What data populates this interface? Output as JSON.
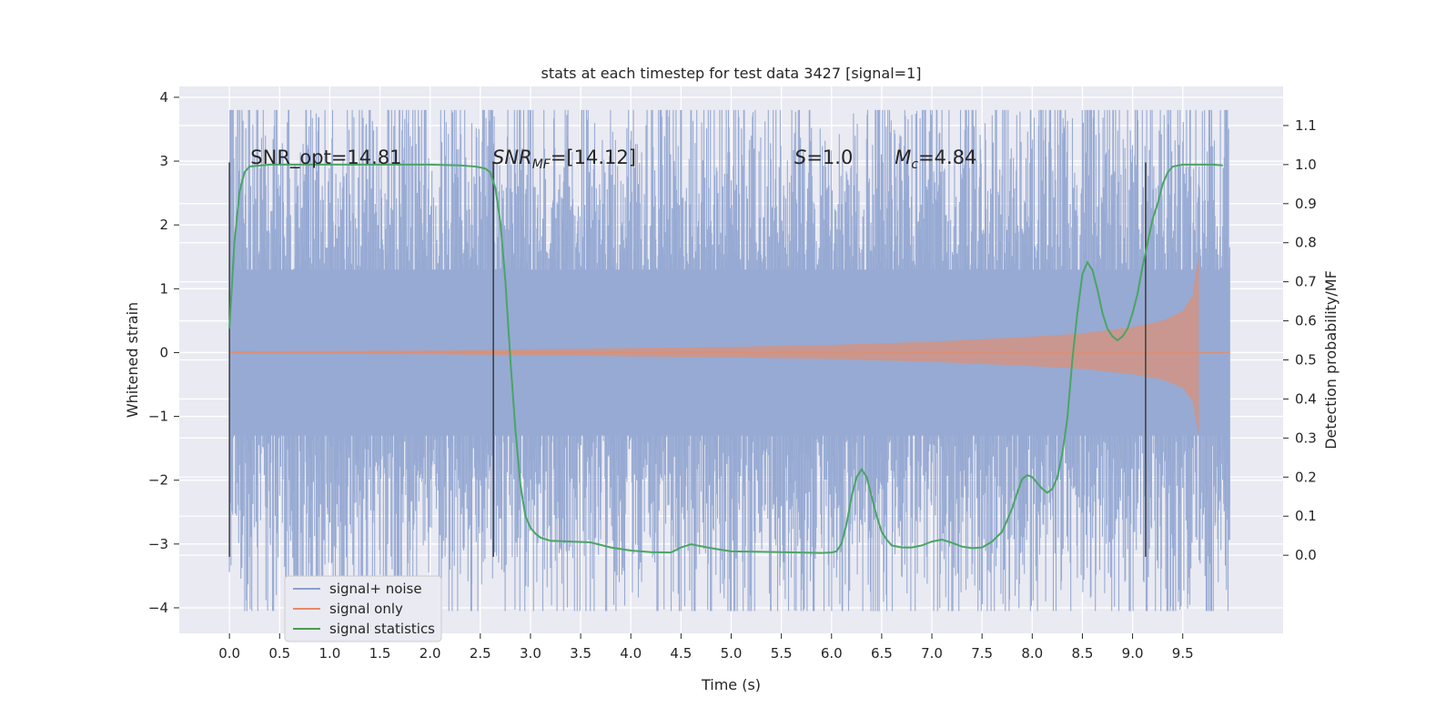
{
  "chart_data": {
    "type": "line",
    "title": "stats at each timestep for test data 3427 [signal=1]",
    "xlabel": "Time (s)",
    "ylabel": "Whitened strain",
    "ylabel_right": "Detection probability/MF",
    "xlim": [
      -0.5,
      10.5
    ],
    "ylim": [
      -4.4,
      4.17
    ],
    "ylim_right": [
      -0.2,
      1.2
    ],
    "xticks": [
      "0.0",
      "0.5",
      "1.0",
      "1.5",
      "2.0",
      "2.5",
      "3.0",
      "3.5",
      "4.0",
      "4.5",
      "5.0",
      "5.5",
      "6.0",
      "6.5",
      "7.0",
      "7.5",
      "8.0",
      "8.5",
      "9.0",
      "9.5"
    ],
    "xtick_values": [
      0.0,
      0.5,
      1.0,
      1.5,
      2.0,
      2.5,
      3.0,
      3.5,
      4.0,
      4.5,
      5.0,
      5.5,
      6.0,
      6.5,
      7.0,
      7.5,
      8.0,
      8.5,
      9.0,
      9.5
    ],
    "yticks": [
      "4",
      "3",
      "2",
      "1",
      "0",
      "−1",
      "−2",
      "−3",
      "−4"
    ],
    "ytick_values": [
      4,
      3,
      2,
      1,
      0,
      -1,
      -2,
      -3,
      -4
    ],
    "yticks_right": [
      "1.1",
      "1.0",
      "0.9",
      "0.8",
      "0.7",
      "0.6",
      "0.5",
      "0.4",
      "0.3",
      "0.2",
      "0.1",
      "0.0"
    ],
    "ytick_right_values": [
      1.1,
      1.0,
      0.9,
      0.8,
      0.7,
      0.6,
      0.5,
      0.4,
      0.3,
      0.2,
      0.1,
      0.0
    ],
    "annotations": {
      "snr_opt": "SNR_opt=14.81",
      "snr_mf_base": "SNR",
      "snr_mf_sub": "MF",
      "snr_mf_val": "=[14.12]",
      "s_italic": "S",
      "s_val": "=1.0",
      "mc_base": "M",
      "mc_sub": "c",
      "mc_val": "=4.84"
    },
    "vertical_markers_x": [
      0.0,
      2.63,
      9.13
    ],
    "noise_envelope": {
      "x_range": [
        0.0,
        9.97
      ],
      "typical_amplitude": 2.0,
      "max_peak": 3.8,
      "min_peak": -4.05
    },
    "signal_only": {
      "x_range": [
        0.0,
        9.67
      ],
      "amplitude": [
        [
          0.0,
          0.02
        ],
        [
          2.0,
          0.03
        ],
        [
          4.0,
          0.07
        ],
        [
          5.0,
          0.09
        ],
        [
          6.0,
          0.12
        ],
        [
          7.0,
          0.17
        ],
        [
          8.0,
          0.25
        ],
        [
          8.5,
          0.3
        ],
        [
          9.0,
          0.4
        ],
        [
          9.3,
          0.5
        ],
        [
          9.5,
          0.65
        ],
        [
          9.6,
          0.9
        ],
        [
          9.65,
          1.5
        ]
      ]
    },
    "series": [
      {
        "name": "signal statistics",
        "axis": "right",
        "x": [
          0.0,
          0.05,
          0.1,
          0.15,
          0.2,
          0.4,
          1.0,
          1.5,
          2.0,
          2.3,
          2.45,
          2.55,
          2.6,
          2.65,
          2.7,
          2.75,
          2.8,
          2.85,
          2.9,
          2.95,
          3.0,
          3.05,
          3.1,
          3.2,
          3.4,
          3.6,
          3.8,
          4.0,
          4.2,
          4.4,
          4.5,
          4.6,
          4.8,
          5.0,
          5.5,
          5.9,
          6.0,
          6.05,
          6.1,
          6.15,
          6.2,
          6.25,
          6.3,
          6.35,
          6.4,
          6.45,
          6.5,
          6.55,
          6.6,
          6.7,
          6.8,
          6.9,
          7.0,
          7.1,
          7.2,
          7.3,
          7.4,
          7.5,
          7.6,
          7.7,
          7.75,
          7.8,
          7.85,
          7.9,
          7.95,
          8.0,
          8.05,
          8.1,
          8.15,
          8.2,
          8.25,
          8.3,
          8.35,
          8.4,
          8.45,
          8.5,
          8.55,
          8.6,
          8.65,
          8.7,
          8.75,
          8.8,
          8.85,
          8.9,
          8.95,
          9.0,
          9.05,
          9.1,
          9.15,
          9.2,
          9.25,
          9.3,
          9.35,
          9.4,
          9.5,
          9.6,
          9.7,
          9.8,
          9.9
        ],
        "values": [
          0.58,
          0.8,
          0.93,
          0.98,
          0.995,
          1.0,
          1.0,
          1.0,
          1.0,
          0.998,
          0.995,
          0.99,
          0.98,
          0.94,
          0.85,
          0.7,
          0.5,
          0.32,
          0.18,
          0.1,
          0.07,
          0.055,
          0.045,
          0.037,
          0.035,
          0.033,
          0.02,
          0.012,
          0.008,
          0.007,
          0.02,
          0.028,
          0.018,
          0.01,
          0.008,
          0.006,
          0.007,
          0.01,
          0.03,
          0.08,
          0.15,
          0.2,
          0.22,
          0.2,
          0.15,
          0.1,
          0.06,
          0.04,
          0.025,
          0.02,
          0.02,
          0.025,
          0.035,
          0.04,
          0.032,
          0.022,
          0.018,
          0.02,
          0.035,
          0.06,
          0.09,
          0.12,
          0.16,
          0.195,
          0.205,
          0.2,
          0.185,
          0.17,
          0.16,
          0.17,
          0.2,
          0.26,
          0.35,
          0.5,
          0.62,
          0.72,
          0.75,
          0.73,
          0.68,
          0.62,
          0.58,
          0.56,
          0.55,
          0.56,
          0.58,
          0.62,
          0.67,
          0.74,
          0.8,
          0.86,
          0.9,
          0.95,
          0.98,
          0.995,
          1.0,
          1.0,
          1.0,
          1.0,
          0.998
        ]
      }
    ],
    "legend": {
      "position": "lower-left",
      "entries": [
        {
          "label": "signal+ noise",
          "color": "#8da0cb"
        },
        {
          "label": "signal only",
          "color": "#e78a6a"
        },
        {
          "label": "signal statistics",
          "color": "#4a9b52"
        }
      ]
    }
  },
  "colors": {
    "plot_bg": "#eaeaf2",
    "grid": "#ffffff",
    "noise": "#97aad3",
    "signal": "#d99078",
    "stat": "#4aa564",
    "marker": "#3c3c3c"
  }
}
